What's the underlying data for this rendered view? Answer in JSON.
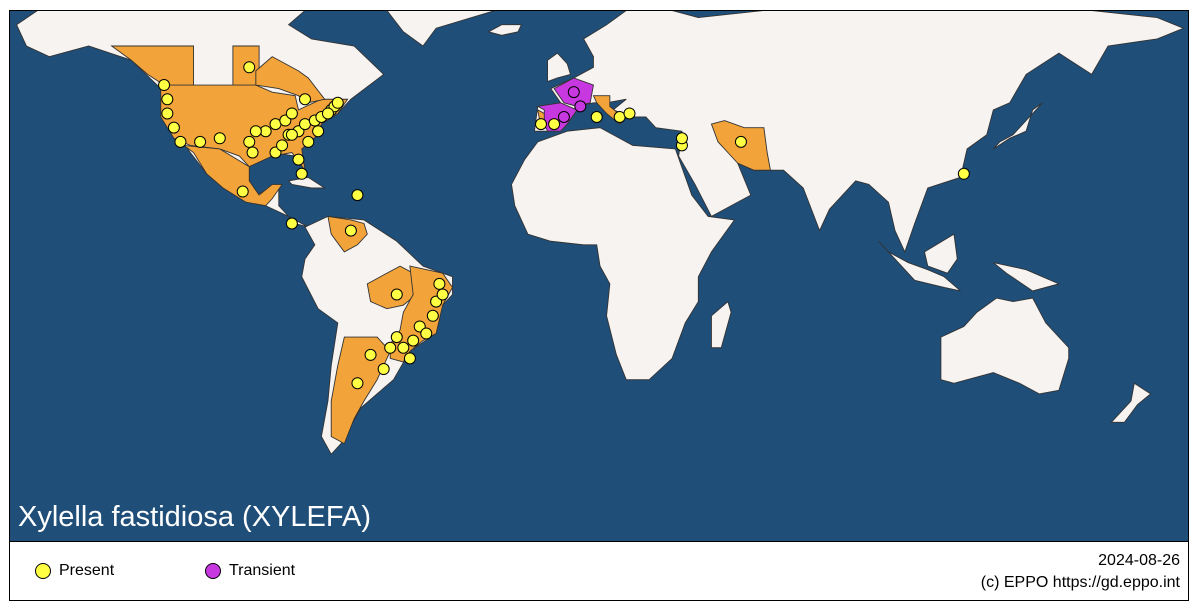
{
  "map": {
    "title": "Xylella fastidiosa (XYLEFA)",
    "colors": {
      "ocean": "#1f4e79",
      "land": "#f6f3f1",
      "border": "#333333",
      "present_region": "#f2a33a",
      "transient_region": "#c838e0",
      "present_dot": "#ffff44",
      "transient_dot": "#c838e0"
    }
  },
  "legend": {
    "items": [
      {
        "label": "Present",
        "color": "#ffff44"
      },
      {
        "label": "Transient",
        "color": "#c838e0"
      }
    ],
    "date": "2024-08-26",
    "credit": "(c) EPPO https://gd.eppo.int"
  },
  "markers": {
    "present": [
      [
        -123,
        49
      ],
      [
        -97,
        54
      ],
      [
        -122,
        45
      ],
      [
        -122,
        41
      ],
      [
        -120,
        37
      ],
      [
        -118,
        33
      ],
      [
        -112,
        33
      ],
      [
        -106,
        34
      ],
      [
        -97,
        33
      ],
      [
        -96,
        30
      ],
      [
        -89,
        30
      ],
      [
        -92,
        36
      ],
      [
        -89,
        38
      ],
      [
        -85,
        35
      ],
      [
        -86,
        39
      ],
      [
        -84,
        41
      ],
      [
        -82,
        36
      ],
      [
        -80,
        38
      ],
      [
        -79,
        33
      ],
      [
        -77,
        39
      ],
      [
        -75,
        40
      ],
      [
        -72,
        42
      ],
      [
        -71,
        43
      ],
      [
        -70,
        44
      ],
      [
        -82,
        28
      ],
      [
        -81,
        24
      ],
      [
        -99,
        19
      ],
      [
        -80,
        45
      ],
      [
        -84,
        35
      ],
      [
        -87,
        32
      ],
      [
        -76,
        36
      ],
      [
        -73,
        41
      ],
      [
        -95,
        36
      ],
      [
        -64,
        18
      ],
      [
        -84,
        10
      ],
      [
        -66,
        8
      ],
      [
        -52,
        -10
      ],
      [
        -39,
        -7
      ],
      [
        -40,
        -12
      ],
      [
        -41,
        -16
      ],
      [
        -45,
        -19
      ],
      [
        -47,
        -23
      ],
      [
        -50,
        -25
      ],
      [
        -48,
        -28
      ],
      [
        -52,
        -22
      ],
      [
        -54,
        -25
      ],
      [
        -56,
        -31
      ],
      [
        -64,
        -35
      ],
      [
        -60,
        -27
      ],
      [
        -43,
        -21
      ],
      [
        -38,
        -10
      ],
      [
        -8,
        38
      ],
      [
        -4,
        38
      ],
      [
        9,
        40
      ],
      [
        16,
        40
      ],
      [
        19,
        41
      ],
      [
        35,
        32
      ],
      [
        35,
        34
      ],
      [
        53,
        33
      ],
      [
        121,
        24
      ]
    ],
    "transient": [
      [
        2,
        47
      ],
      [
        -1,
        40
      ],
      [
        4,
        43
      ]
    ]
  }
}
